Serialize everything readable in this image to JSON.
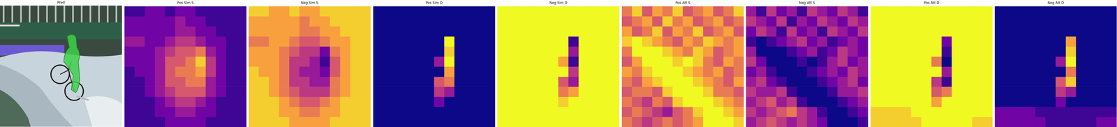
{
  "chart_data": [
    {
      "type": "image",
      "title": "Pred"
    },
    {
      "type": "heatmap",
      "title": "Pos Sim S",
      "color": "plasma",
      "tick_labels": false,
      "range": [
        0,
        9
      ],
      "cells": [
        [
          1,
          1,
          2,
          2,
          1,
          2,
          2,
          1,
          1,
          1,
          1,
          1
        ],
        [
          2,
          2,
          2,
          2,
          2,
          3,
          2,
          2,
          1,
          1,
          1,
          1
        ],
        [
          2,
          2,
          2,
          2,
          2,
          3,
          3,
          2,
          2,
          1,
          1,
          1
        ],
        [
          3,
          3,
          2,
          2,
          3,
          4,
          4,
          3,
          2,
          2,
          1,
          1
        ],
        [
          2,
          2,
          2,
          3,
          4,
          5,
          5,
          6,
          3,
          2,
          1,
          1
        ],
        [
          2,
          2,
          2,
          3,
          5,
          5,
          6,
          8,
          4,
          2,
          1,
          1
        ],
        [
          1,
          2,
          2,
          3,
          5,
          6,
          6,
          7,
          4,
          2,
          1,
          1
        ],
        [
          1,
          1,
          2,
          3,
          5,
          5,
          6,
          6,
          3,
          2,
          1,
          1
        ],
        [
          1,
          1,
          2,
          3,
          4,
          5,
          5,
          5,
          3,
          2,
          1,
          1
        ],
        [
          1,
          1,
          1,
          2,
          3,
          4,
          4,
          3,
          2,
          1,
          1,
          1
        ],
        [
          1,
          1,
          1,
          2,
          2,
          3,
          3,
          2,
          2,
          1,
          1,
          1
        ],
        [
          1,
          1,
          1,
          1,
          2,
          2,
          2,
          2,
          1,
          1,
          1,
          1
        ]
      ]
    },
    {
      "type": "heatmap",
      "title": "Neg Sim S",
      "color": "plasma",
      "tick_labels": false,
      "range": [
        0,
        9
      ],
      "cells": [
        [
          8,
          8,
          7,
          7,
          8,
          7,
          7,
          8,
          8,
          8,
          8,
          8
        ],
        [
          7,
          7,
          7,
          7,
          7,
          6,
          7,
          7,
          8,
          8,
          8,
          8
        ],
        [
          7,
          7,
          7,
          7,
          7,
          6,
          6,
          7,
          7,
          8,
          8,
          8
        ],
        [
          6,
          6,
          7,
          7,
          6,
          5,
          5,
          6,
          7,
          7,
          8,
          8
        ],
        [
          7,
          7,
          7,
          6,
          5,
          4,
          4,
          2,
          6,
          7,
          8,
          8
        ],
        [
          7,
          7,
          7,
          6,
          4,
          4,
          3,
          1,
          5,
          7,
          8,
          8
        ],
        [
          8,
          7,
          7,
          6,
          4,
          3,
          3,
          2,
          5,
          7,
          8,
          8
        ],
        [
          8,
          8,
          7,
          6,
          4,
          4,
          3,
          3,
          6,
          7,
          8,
          8
        ],
        [
          8,
          8,
          7,
          6,
          5,
          4,
          4,
          4,
          6,
          7,
          8,
          8
        ],
        [
          8,
          8,
          8,
          7,
          6,
          5,
          5,
          6,
          7,
          8,
          8,
          8
        ],
        [
          8,
          8,
          8,
          7,
          7,
          6,
          6,
          7,
          7,
          8,
          8,
          8
        ],
        [
          8,
          8,
          8,
          8,
          7,
          7,
          7,
          7,
          8,
          8,
          8,
          8
        ]
      ]
    },
    {
      "type": "heatmap",
      "title": "Pos Sim D",
      "color": "plasma",
      "tick_labels": false,
      "range": [
        0,
        9
      ],
      "cells": [
        [
          0,
          0,
          0,
          0,
          0,
          0,
          0,
          0,
          0,
          0,
          0,
          0
        ],
        [
          0,
          0,
          0,
          0,
          0,
          0,
          0,
          0,
          0,
          0,
          0,
          0
        ],
        [
          0,
          0,
          0,
          0,
          0,
          0,
          0,
          0,
          0,
          0,
          0,
          0
        ],
        [
          0,
          0,
          0,
          0,
          0,
          0,
          0,
          9,
          0,
          0,
          0,
          0
        ],
        [
          0,
          0,
          0,
          0,
          0,
          0,
          0,
          8,
          0,
          0,
          0,
          0
        ],
        [
          0,
          0,
          0,
          0,
          0,
          0,
          3,
          9,
          0,
          0,
          0,
          0
        ],
        [
          0,
          0,
          0,
          0,
          0,
          0,
          0,
          7,
          0,
          0,
          0,
          0
        ],
        [
          0,
          0,
          0,
          0,
          0,
          0,
          5,
          6,
          0,
          0,
          0,
          0
        ],
        [
          0,
          0,
          0,
          0,
          0,
          0,
          4,
          3,
          0,
          0,
          0,
          0
        ],
        [
          0,
          0,
          0,
          0,
          0,
          0,
          2,
          0,
          0,
          0,
          0,
          0
        ],
        [
          0,
          0,
          0,
          0,
          0,
          0,
          0,
          0,
          0,
          0,
          0,
          0
        ],
        [
          0,
          0,
          0,
          0,
          0,
          0,
          0,
          0,
          0,
          0,
          0,
          0
        ]
      ]
    },
    {
      "type": "heatmap",
      "title": "Neg Sim D",
      "color": "plasma",
      "tick_labels": false,
      "range": [
        0,
        9
      ],
      "cells": [
        [
          9,
          9,
          9,
          9,
          9,
          9,
          9,
          9,
          9,
          9,
          9,
          9
        ],
        [
          9,
          9,
          9,
          9,
          9,
          9,
          9,
          9,
          9,
          9,
          9,
          9
        ],
        [
          9,
          9,
          9,
          9,
          9,
          9,
          9,
          9,
          9,
          9,
          9,
          9
        ],
        [
          9,
          9,
          9,
          9,
          9,
          9,
          9,
          1,
          9,
          9,
          9,
          9
        ],
        [
          9,
          9,
          9,
          9,
          9,
          9,
          9,
          3,
          9,
          9,
          9,
          9
        ],
        [
          9,
          9,
          9,
          9,
          9,
          9,
          7,
          1,
          9,
          9,
          9,
          9
        ],
        [
          9,
          9,
          9,
          9,
          9,
          9,
          9,
          4,
          9,
          9,
          9,
          9
        ],
        [
          9,
          9,
          9,
          9,
          9,
          9,
          5,
          3,
          9,
          9,
          9,
          9
        ],
        [
          9,
          9,
          9,
          9,
          9,
          9,
          6,
          7,
          9,
          9,
          9,
          9
        ],
        [
          9,
          9,
          9,
          9,
          9,
          9,
          8,
          9,
          9,
          9,
          9,
          9
        ],
        [
          9,
          9,
          9,
          9,
          9,
          9,
          9,
          9,
          9,
          9,
          9,
          9
        ],
        [
          9,
          9,
          9,
          9,
          9,
          9,
          9,
          9,
          9,
          9,
          9,
          9
        ]
      ]
    },
    {
      "type": "heatmap",
      "title": "Pos Att S",
      "color": "plasma",
      "tick_labels": false,
      "range": [
        0,
        9
      ],
      "cells": [
        [
          6,
          8,
          5,
          7,
          6,
          8,
          5,
          6,
          7,
          5,
          6,
          8
        ],
        [
          5,
          6,
          7,
          5,
          8,
          6,
          7,
          5,
          6,
          7,
          5,
          6
        ],
        [
          7,
          5,
          6,
          8,
          5,
          7,
          6,
          8,
          5,
          6,
          7,
          5
        ],
        [
          8,
          9,
          8,
          7,
          6,
          5,
          7,
          6,
          8,
          7,
          6,
          7
        ],
        [
          6,
          9,
          9,
          9,
          8,
          7,
          6,
          8,
          7,
          5,
          6,
          7
        ],
        [
          5,
          7,
          9,
          9,
          9,
          8,
          9,
          8,
          6,
          5,
          7,
          6
        ],
        [
          7,
          6,
          8,
          9,
          9,
          9,
          8,
          7,
          6,
          7,
          5,
          6
        ],
        [
          6,
          5,
          7,
          8,
          9,
          9,
          9,
          8,
          7,
          6,
          5,
          7
        ],
        [
          5,
          6,
          6,
          5,
          8,
          9,
          9,
          9,
          8,
          6,
          6,
          5
        ],
        [
          6,
          5,
          4,
          6,
          5,
          8,
          9,
          9,
          9,
          8,
          7,
          6
        ],
        [
          5,
          6,
          5,
          4,
          3,
          5,
          6,
          8,
          9,
          9,
          8,
          7
        ],
        [
          6,
          5,
          4,
          5,
          6,
          5,
          6,
          7,
          9,
          9,
          9,
          8
        ]
      ]
    },
    {
      "type": "heatmap",
      "title": "Neg Att S",
      "color": "plasma",
      "tick_labels": false,
      "range": [
        0,
        9
      ],
      "cells": [
        [
          3,
          1,
          4,
          2,
          3,
          1,
          4,
          3,
          2,
          4,
          3,
          1
        ],
        [
          4,
          3,
          2,
          4,
          1,
          3,
          2,
          4,
          3,
          2,
          4,
          3
        ],
        [
          2,
          4,
          3,
          1,
          4,
          2,
          3,
          1,
          4,
          3,
          2,
          4
        ],
        [
          1,
          0,
          1,
          2,
          3,
          4,
          2,
          3,
          1,
          2,
          3,
          2
        ],
        [
          3,
          0,
          0,
          0,
          1,
          2,
          3,
          1,
          2,
          4,
          3,
          2
        ],
        [
          4,
          2,
          0,
          0,
          0,
          1,
          0,
          1,
          3,
          4,
          2,
          3
        ],
        [
          2,
          3,
          1,
          0,
          0,
          0,
          1,
          2,
          3,
          2,
          4,
          3
        ],
        [
          3,
          4,
          2,
          1,
          0,
          0,
          0,
          1,
          2,
          3,
          4,
          2
        ],
        [
          4,
          3,
          3,
          4,
          1,
          0,
          0,
          0,
          1,
          3,
          3,
          4
        ],
        [
          3,
          4,
          5,
          3,
          4,
          1,
          0,
          0,
          0,
          1,
          2,
          3
        ],
        [
          4,
          3,
          4,
          5,
          6,
          4,
          3,
          1,
          0,
          0,
          1,
          2
        ],
        [
          3,
          4,
          5,
          4,
          3,
          4,
          3,
          2,
          0,
          0,
          0,
          1
        ]
      ]
    },
    {
      "type": "heatmap",
      "title": "Pos Att D",
      "color": "plasma",
      "tick_labels": false,
      "range": [
        0,
        9
      ],
      "cells": [
        [
          9,
          9,
          9,
          9,
          9,
          9,
          9,
          9,
          9,
          9,
          9,
          9
        ],
        [
          9,
          9,
          9,
          9,
          9,
          9,
          9,
          9,
          9,
          9,
          9,
          9
        ],
        [
          9,
          9,
          9,
          9,
          9,
          9,
          9,
          9,
          9,
          9,
          9,
          9
        ],
        [
          9,
          9,
          9,
          9,
          9,
          9,
          9,
          2,
          9,
          9,
          9,
          9
        ],
        [
          9,
          9,
          9,
          9,
          9,
          9,
          9,
          1,
          9,
          9,
          9,
          9
        ],
        [
          9,
          9,
          9,
          9,
          9,
          9,
          6,
          0,
          9,
          9,
          9,
          9
        ],
        [
          9,
          9,
          9,
          9,
          9,
          9,
          9,
          3,
          9,
          9,
          9,
          9
        ],
        [
          9,
          9,
          9,
          9,
          9,
          9,
          4,
          1,
          9,
          9,
          9,
          9
        ],
        [
          9,
          9,
          9,
          9,
          9,
          9,
          5,
          6,
          9,
          9,
          9,
          9
        ],
        [
          9,
          9,
          9,
          9,
          9,
          9,
          7,
          9,
          9,
          9,
          9,
          9
        ],
        [
          8,
          8,
          8,
          8,
          9,
          9,
          9,
          9,
          9,
          9,
          9,
          9
        ],
        [
          8,
          8,
          8,
          8,
          8,
          9,
          9,
          9,
          9,
          9,
          8,
          8
        ]
      ]
    },
    {
      "type": "heatmap",
      "title": "Neg Att D",
      "color": "plasma",
      "tick_labels": false,
      "range": [
        0,
        9
      ],
      "cells": [
        [
          0,
          0,
          0,
          0,
          0,
          0,
          0,
          0,
          0,
          0,
          0,
          0
        ],
        [
          0,
          0,
          0,
          0,
          0,
          0,
          0,
          0,
          0,
          0,
          0,
          0
        ],
        [
          0,
          0,
          0,
          0,
          0,
          0,
          0,
          0,
          0,
          0,
          0,
          0
        ],
        [
          0,
          0,
          0,
          0,
          0,
          0,
          0,
          7,
          0,
          0,
          0,
          0
        ],
        [
          0,
          0,
          0,
          0,
          0,
          0,
          0,
          8,
          0,
          0,
          0,
          0
        ],
        [
          0,
          0,
          0,
          0,
          0,
          0,
          3,
          9,
          0,
          0,
          0,
          0
        ],
        [
          0,
          0,
          0,
          0,
          0,
          0,
          0,
          6,
          0,
          0,
          0,
          0
        ],
        [
          0,
          0,
          0,
          0,
          0,
          0,
          5,
          8,
          0,
          0,
          0,
          0
        ],
        [
          0,
          0,
          0,
          0,
          0,
          0,
          4,
          3,
          0,
          0,
          0,
          0
        ],
        [
          0,
          0,
          0,
          0,
          0,
          0,
          2,
          0,
          0,
          0,
          0,
          0
        ],
        [
          2,
          2,
          2,
          2,
          1,
          1,
          1,
          1,
          1,
          1,
          1,
          1
        ],
        [
          2,
          2,
          2,
          2,
          2,
          1,
          1,
          1,
          1,
          1,
          2,
          2
        ]
      ]
    }
  ]
}
